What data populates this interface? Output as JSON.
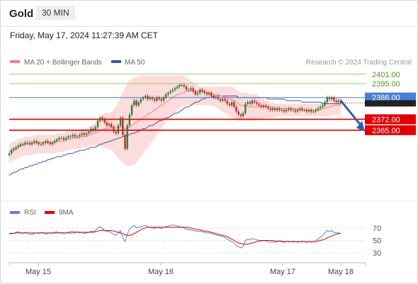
{
  "header": {
    "asset": "Gold",
    "timeframe": "30 MIN"
  },
  "datetime": "Friday, May 17, 2024 11:27:39 AM CET",
  "legend": {
    "ma20": "MA 20 + Bollinger Bands",
    "ma50": "MA 50",
    "rsi": "RSI",
    "ma9": "9MA"
  },
  "credit": "Research © 2024 Trading Central",
  "colors": {
    "up": "#2e7d32",
    "down": "#c62828",
    "ma20": "#f08080",
    "band": "#fbd6d6",
    "ma50": "#3a5998",
    "resistance": "#9ccc65",
    "pivot": "#4a7fd8",
    "support": "#e00000",
    "rsi": "#5b7fd6",
    "rsi_ma": "#e00000"
  },
  "chart_data": {
    "type": "candlestick",
    "x_ticks": [
      "May 15",
      "May 16",
      "May 17",
      "May 18"
    ],
    "ylim": [
      2323,
      2405
    ],
    "levels": [
      {
        "label": "2401.00",
        "value": 2401.0,
        "kind": "resistance"
      },
      {
        "label": "2395.00",
        "value": 2395.0,
        "kind": "resistance"
      },
      {
        "label": "2386.00",
        "value": 2386.0,
        "kind": "pivot"
      },
      {
        "label": "2372.00",
        "value": 2372.0,
        "kind": "support"
      },
      {
        "label": "2365.00",
        "value": 2365.0,
        "kind": "support"
      }
    ],
    "current_price": 2382.5,
    "forecast": {
      "direction": "down",
      "from": 2384,
      "to": 2365
    },
    "close": [
      2350,
      2352,
      2353,
      2354,
      2355,
      2356,
      2356,
      2357,
      2357,
      2356,
      2357,
      2358,
      2357,
      2356,
      2356,
      2357,
      2358,
      2357,
      2356,
      2357,
      2358,
      2359,
      2360,
      2360,
      2359,
      2360,
      2361,
      2361,
      2362,
      2361,
      2361,
      2362,
      2363,
      2362,
      2363,
      2364,
      2366,
      2365,
      2367,
      2371,
      2373,
      2372,
      2370,
      2368,
      2369,
      2367,
      2364,
      2363,
      2368,
      2373,
      2362,
      2353,
      2368,
      2375,
      2381,
      2384,
      2381,
      2383,
      2385,
      2386,
      2387,
      2385,
      2386,
      2385,
      2384,
      2386,
      2385,
      2384,
      2386,
      2388,
      2389,
      2390,
      2391,
      2392,
      2393,
      2394,
      2394,
      2393,
      2391,
      2391,
      2392,
      2390,
      2388,
      2389,
      2391,
      2390,
      2389,
      2388,
      2389,
      2387,
      2386,
      2386,
      2385,
      2384,
      2385,
      2384,
      2382,
      2381,
      2383,
      2380,
      2377,
      2375,
      2374,
      2376,
      2382,
      2383,
      2382,
      2384,
      2383,
      2382,
      2381,
      2380,
      2381,
      2380,
      2379,
      2378,
      2379,
      2378,
      2379,
      2378,
      2378,
      2377,
      2378,
      2379,
      2378,
      2378,
      2377,
      2378,
      2379,
      2378,
      2378,
      2377,
      2378,
      2377,
      2377,
      2378,
      2379,
      2380,
      2381,
      2383,
      2386,
      2385,
      2386,
      2384,
      2383,
      2384,
      2382.5
    ],
    "ma20": [
      2351,
      2352,
      2353,
      2353,
      2354,
      2355,
      2355,
      2356,
      2356,
      2356,
      2356,
      2357,
      2357,
      2357,
      2357,
      2357,
      2357,
      2357,
      2357,
      2357,
      2357,
      2358,
      2358,
      2358,
      2358,
      2359,
      2359,
      2359,
      2360,
      2360,
      2360,
      2360,
      2361,
      2361,
      2361,
      2362,
      2362,
      2363,
      2363,
      2364,
      2365,
      2365,
      2366,
      2366,
      2366,
      2367,
      2367,
      2367,
      2367,
      2367,
      2367,
      2366,
      2366,
      2367,
      2368,
      2369,
      2370,
      2371,
      2372,
      2373,
      2374,
      2375,
      2376,
      2377,
      2378,
      2379,
      2380,
      2381,
      2382,
      2383,
      2384,
      2385,
      2386,
      2387,
      2388,
      2388,
      2389,
      2389,
      2390,
      2390,
      2390,
      2390,
      2390,
      2390,
      2390,
      2390,
      2390,
      2389,
      2389,
      2389,
      2388,
      2388,
      2388,
      2387,
      2387,
      2386,
      2386,
      2385,
      2385,
      2384,
      2383,
      2382,
      2381,
      2381,
      2381,
      2380,
      2380,
      2380,
      2380,
      2380,
      2380,
      2380,
      2380,
      2380,
      2380,
      2380,
      2380,
      2379,
      2379,
      2379,
      2379,
      2379,
      2379,
      2379,
      2379,
      2379,
      2379,
      2379,
      2378,
      2378,
      2378,
      2378,
      2378,
      2378,
      2378,
      2378,
      2378,
      2378,
      2379,
      2379,
      2380,
      2380,
      2380,
      2381,
      2381,
      2381,
      2381
    ],
    "band_upper": [
      2356,
      2357,
      2358,
      2358,
      2359,
      2360,
      2360,
      2361,
      2361,
      2361,
      2361,
      2362,
      2362,
      2362,
      2362,
      2362,
      2362,
      2362,
      2362,
      2362,
      2362,
      2363,
      2363,
      2363,
      2363,
      2364,
      2364,
      2364,
      2365,
      2365,
      2365,
      2365,
      2366,
      2366,
      2366,
      2367,
      2368,
      2369,
      2370,
      2372,
      2374,
      2375,
      2376,
      2376,
      2376,
      2377,
      2378,
      2380,
      2383,
      2386,
      2389,
      2392,
      2395,
      2397,
      2398,
      2399,
      2399,
      2400,
      2400,
      2400,
      2400,
      2400,
      2400,
      2400,
      2400,
      2400,
      2400,
      2400,
      2400,
      2400,
      2400,
      2400,
      2400,
      2400,
      2400,
      2400,
      2400,
      2400,
      2399,
      2398,
      2397,
      2396,
      2395,
      2394,
      2393,
      2393,
      2393,
      2393,
      2393,
      2393,
      2393,
      2393,
      2393,
      2393,
      2393,
      2393,
      2393,
      2393,
      2393,
      2392,
      2391,
      2390,
      2389,
      2389,
      2389,
      2389,
      2388,
      2388,
      2388,
      2388,
      2387,
      2386,
      2385,
      2384,
      2384,
      2383,
      2383,
      2382,
      2382,
      2382,
      2382,
      2382,
      2382,
      2382,
      2382,
      2382,
      2382,
      2382,
      2382,
      2382,
      2382,
      2382,
      2382,
      2382,
      2382,
      2382,
      2382,
      2382,
      2383,
      2384,
      2385,
      2386,
      2386,
      2386,
      2386,
      2386,
      2386
    ],
    "band_lower": [
      2344,
      2345,
      2346,
      2346,
      2347,
      2348,
      2348,
      2349,
      2349,
      2349,
      2349,
      2350,
      2350,
      2350,
      2350,
      2350,
      2350,
      2350,
      2350,
      2350,
      2350,
      2351,
      2351,
      2351,
      2351,
      2352,
      2352,
      2352,
      2353,
      2353,
      2353,
      2353,
      2354,
      2354,
      2354,
      2355,
      2355,
      2355,
      2355,
      2355,
      2355,
      2354,
      2354,
      2353,
      2353,
      2352,
      2351,
      2349,
      2347,
      2345,
      2344,
      2343,
      2342,
      2342,
      2342,
      2343,
      2344,
      2346,
      2348,
      2350,
      2352,
      2354,
      2356,
      2358,
      2360,
      2362,
      2364,
      2366,
      2368,
      2370,
      2372,
      2374,
      2375,
      2377,
      2378,
      2379,
      2380,
      2380,
      2381,
      2381,
      2381,
      2381,
      2381,
      2381,
      2381,
      2381,
      2381,
      2381,
      2381,
      2381,
      2380,
      2380,
      2379,
      2378,
      2377,
      2376,
      2375,
      2374,
      2373,
      2372,
      2371,
      2371,
      2371,
      2371,
      2371,
      2371,
      2371,
      2371,
      2371,
      2371,
      2372,
      2372,
      2372,
      2373,
      2373,
      2373,
      2373,
      2373,
      2374,
      2374,
      2374,
      2374,
      2374,
      2374,
      2374,
      2374,
      2374,
      2374,
      2374,
      2374,
      2374,
      2374,
      2374,
      2374,
      2374,
      2374,
      2374,
      2374,
      2374,
      2374,
      2374,
      2374,
      2375,
      2375,
      2375,
      2375,
      2375
    ],
    "ma50": [
      2336,
      2337,
      2338,
      2338,
      2339,
      2340,
      2340,
      2341,
      2341,
      2342,
      2342,
      2343,
      2343,
      2344,
      2344,
      2345,
      2345,
      2346,
      2346,
      2347,
      2347,
      2348,
      2348,
      2348,
      2349,
      2349,
      2350,
      2350,
      2350,
      2351,
      2351,
      2352,
      2352,
      2352,
      2353,
      2353,
      2354,
      2354,
      2354,
      2355,
      2356,
      2356,
      2357,
      2357,
      2358,
      2358,
      2359,
      2359,
      2360,
      2360,
      2361,
      2361,
      2362,
      2362,
      2363,
      2363,
      2364,
      2364,
      2365,
      2366,
      2366,
      2367,
      2368,
      2368,
      2369,
      2370,
      2371,
      2371,
      2372,
      2373,
      2373,
      2374,
      2375,
      2376,
      2376,
      2377,
      2378,
      2379,
      2380,
      2380,
      2381,
      2382,
      2383,
      2383,
      2384,
      2385,
      2385,
      2386,
      2386,
      2386,
      2387,
      2387,
      2387,
      2387,
      2387,
      2387,
      2387,
      2387,
      2387,
      2387,
      2387,
      2386,
      2386,
      2386,
      2386,
      2386,
      2386,
      2386,
      2386,
      2386,
      2386,
      2386,
      2386,
      2386,
      2385,
      2385,
      2385,
      2385,
      2385,
      2385,
      2385,
      2385,
      2384,
      2384,
      2384,
      2384,
      2384,
      2384,
      2384,
      2383,
      2383,
      2383,
      2383,
      2383,
      2383,
      2383,
      2383,
      2383,
      2382,
      2382,
      2382,
      2382,
      2382,
      2382,
      2382,
      2382,
      2382
    ],
    "rsi": {
      "ylim": [
        20,
        80
      ],
      "ticks": [
        "70",
        "50",
        "30"
      ],
      "tick_values": [
        70,
        50,
        30
      ],
      "values": [
        60,
        62,
        61,
        63,
        64,
        62,
        61,
        63,
        62,
        60,
        59,
        61,
        62,
        61,
        63,
        62,
        60,
        61,
        62,
        61,
        63,
        64,
        62,
        63,
        61,
        62,
        63,
        64,
        65,
        63,
        64,
        62,
        63,
        61,
        62,
        63,
        65,
        64,
        66,
        70,
        72,
        69,
        66,
        64,
        65,
        62,
        60,
        58,
        62,
        66,
        55,
        48,
        60,
        68,
        72,
        74,
        70,
        71,
        72,
        73,
        74,
        72,
        71,
        70,
        69,
        71,
        70,
        69,
        71,
        72,
        73,
        74,
        75,
        74,
        73,
        72,
        71,
        70,
        68,
        67,
        67,
        66,
        65,
        64,
        65,
        64,
        63,
        62,
        62,
        61,
        60,
        59,
        58,
        57,
        56,
        55,
        52,
        50,
        48,
        46,
        42,
        40,
        38,
        40,
        50,
        52,
        51,
        53,
        52,
        51,
        50,
        49,
        50,
        49,
        48,
        47,
        48,
        47,
        48,
        49,
        48,
        47,
        48,
        49,
        48,
        49,
        48,
        47,
        48,
        49,
        48,
        47,
        48,
        47,
        48,
        50,
        52,
        55,
        58,
        62,
        66,
        64,
        66,
        63,
        62,
        62,
        61
      ],
      "ma9": [
        61,
        61,
        61,
        62,
        62,
        62,
        62,
        62,
        62,
        62,
        62,
        62,
        62,
        62,
        62,
        62,
        62,
        62,
        62,
        62,
        62,
        62,
        62,
        62,
        62,
        62,
        62,
        62,
        62,
        63,
        63,
        63,
        63,
        63,
        63,
        63,
        63,
        63,
        64,
        65,
        66,
        66,
        66,
        66,
        66,
        66,
        65,
        64,
        63,
        62,
        61,
        59,
        58,
        58,
        59,
        61,
        63,
        65,
        67,
        69,
        70,
        71,
        71,
        71,
        71,
        71,
        71,
        71,
        71,
        71,
        71,
        71,
        71,
        71,
        71,
        71,
        71,
        71,
        71,
        70,
        70,
        69,
        68,
        67,
        67,
        66,
        65,
        65,
        64,
        63,
        62,
        61,
        60,
        59,
        58,
        57,
        56,
        54,
        52,
        50,
        48,
        46,
        45,
        44,
        44,
        44,
        45,
        46,
        47,
        48,
        49,
        50,
        50,
        50,
        50,
        50,
        50,
        49,
        49,
        49,
        49,
        48,
        48,
        48,
        48,
        48,
        48,
        48,
        48,
        48,
        48,
        48,
        48,
        48,
        48,
        48,
        49,
        50,
        51,
        52,
        54,
        56,
        57,
        59,
        60,
        61,
        61
      ]
    }
  }
}
